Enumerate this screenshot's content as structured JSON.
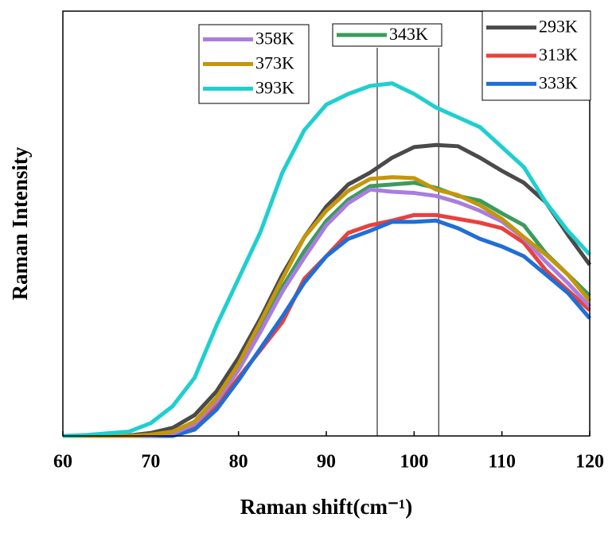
{
  "chart_data": {
    "type": "line",
    "x_label": "Raman shift(cm⁻¹)",
    "y_label": "Raman Intensity",
    "x": [
      60,
      62.5,
      65,
      67.5,
      70,
      72.5,
      75,
      77.5,
      80,
      82.5,
      85,
      87.5,
      90,
      92.5,
      95,
      97.5,
      100,
      102.5,
      105,
      107.5,
      110,
      112.5,
      115,
      117.5,
      120
    ],
    "xlim": [
      60,
      120
    ],
    "xticks": [
      60,
      70,
      80,
      90,
      100,
      110,
      120
    ],
    "ylim": [
      0,
      100
    ],
    "vlines": [
      95.8,
      102.8
    ],
    "series": [
      {
        "name": "293K",
        "color": "#4a4a4a",
        "values": [
          0,
          0,
          0,
          0.1,
          0.7,
          1.9,
          4.9,
          10.5,
          18.4,
          27.7,
          38,
          46.8,
          54,
          59.2,
          62,
          65.5,
          68,
          68.5,
          68.2,
          65.5,
          62.4,
          59.6,
          55,
          47.4,
          40.3
        ]
      },
      {
        "name": "313K",
        "color": "#e8413e",
        "values": [
          0,
          0,
          0,
          0,
          0,
          0.2,
          1.9,
          7.1,
          13.7,
          20.2,
          26.8,
          37,
          42.3,
          47.8,
          49.6,
          50.7,
          52,
          52,
          51.1,
          50.2,
          48.9,
          45.5,
          39,
          34.3,
          29.6
        ]
      },
      {
        "name": "333K",
        "color": "#1f6fd6",
        "values": [
          0,
          0,
          0,
          0,
          0,
          0,
          1.5,
          6.2,
          13.1,
          20.6,
          28.1,
          36.1,
          42.3,
          46.4,
          48.3,
          50.4,
          50.4,
          50.7,
          48.9,
          46.4,
          44.6,
          42.3,
          38,
          33.7,
          27.7
        ]
      },
      {
        "name": "343K",
        "color": "#3a9c5c",
        "values": [
          0,
          0,
          0,
          0,
          0.1,
          0.5,
          3,
          8.5,
          16,
          25.5,
          35,
          43.5,
          50.6,
          55.6,
          58.8,
          59.2,
          59.6,
          58.4,
          56.5,
          55.4,
          52.4,
          49.6,
          43,
          38,
          33
        ]
      },
      {
        "name": "358K",
        "color": "#a97de0",
        "values": [
          0,
          0,
          0,
          0,
          0.1,
          0.5,
          2.8,
          8.2,
          15.5,
          24.5,
          34,
          42,
          49.6,
          54.8,
          58,
          57.5,
          57.2,
          56.5,
          55,
          53,
          50.5,
          46.5,
          41,
          36,
          30.5
        ]
      },
      {
        "name": "373K",
        "color": "#c4960a",
        "values": [
          0,
          0,
          0,
          0,
          0.3,
          1,
          3.4,
          9,
          16.9,
          26.8,
          37,
          46.8,
          53,
          57.7,
          60.5,
          60.9,
          60.7,
          58,
          56.7,
          54.3,
          51.1,
          46.8,
          42.7,
          38,
          31.8
        ]
      },
      {
        "name": "393K",
        "color": "#1fcfcf",
        "values": [
          0,
          0.2,
          0.6,
          1,
          3,
          7,
          13.7,
          26,
          37,
          48,
          62,
          72,
          78,
          80.5,
          82.4,
          83,
          80.5,
          77.3,
          75,
          72.7,
          68,
          63.3,
          55,
          48.3,
          42.7
        ]
      }
    ]
  }
}
